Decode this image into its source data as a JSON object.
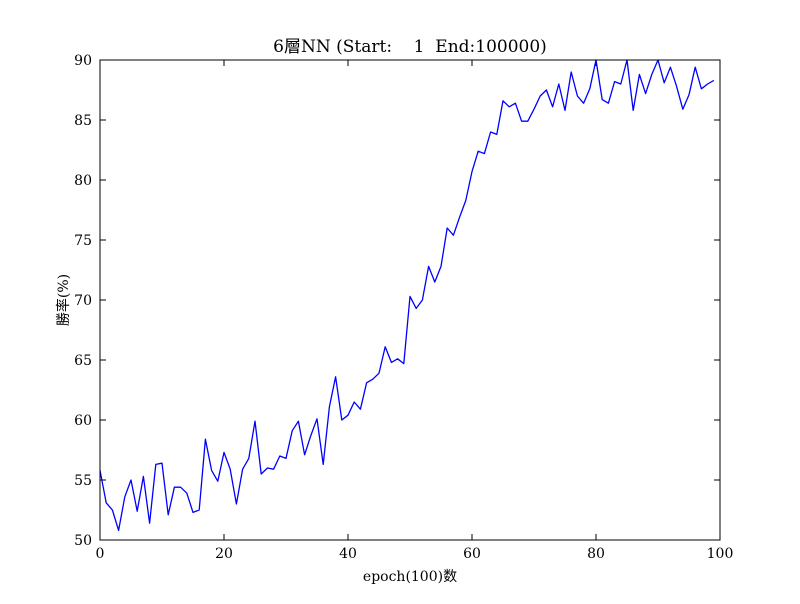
{
  "chart_data": {
    "type": "line",
    "title": "6層NN (Start:    1  End:100000)",
    "xlabel": "epoch(100)数",
    "ylabel": "勝率(%)",
    "xlim": [
      0,
      100
    ],
    "ylim": [
      50,
      90
    ],
    "xticks": [
      0,
      20,
      40,
      60,
      80,
      100
    ],
    "yticks": [
      50,
      55,
      60,
      65,
      70,
      75,
      80,
      85,
      90
    ],
    "xtick_labels": [
      "0",
      "20",
      "40",
      "60",
      "80",
      "100"
    ],
    "ytick_labels": [
      "50",
      "55",
      "60",
      "65",
      "70",
      "75",
      "80",
      "85",
      "90"
    ],
    "grid": false,
    "colors": {
      "line": "#0000ff",
      "axes": "#000000",
      "background": "#ffffff"
    },
    "x": [
      0,
      1,
      2,
      3,
      4,
      5,
      6,
      7,
      8,
      9,
      10,
      11,
      12,
      13,
      14,
      15,
      16,
      17,
      18,
      19,
      20,
      21,
      22,
      23,
      24,
      25,
      26,
      27,
      28,
      29,
      30,
      31,
      32,
      33,
      34,
      35,
      36,
      37,
      38,
      39,
      40,
      41,
      42,
      43,
      44,
      45,
      46,
      47,
      48,
      49,
      50,
      51,
      52,
      53,
      54,
      55,
      56,
      57,
      58,
      59,
      60,
      61,
      62,
      63,
      64,
      65,
      66,
      67,
      68,
      69,
      70,
      71,
      72,
      73,
      74,
      75,
      76,
      77,
      78,
      79,
      80,
      81,
      82,
      83,
      84,
      85,
      86,
      87,
      88,
      89,
      90,
      91,
      92,
      93,
      94,
      95,
      96,
      97,
      98,
      99
    ],
    "y": [
      55.8,
      53.1,
      52.5,
      50.8,
      53.6,
      55.0,
      52.4,
      55.3,
      51.4,
      56.3,
      56.4,
      52.1,
      54.4,
      54.4,
      53.9,
      52.3,
      52.5,
      58.4,
      55.8,
      54.9,
      57.3,
      55.9,
      53.0,
      55.9,
      56.8,
      59.9,
      55.5,
      56.0,
      55.9,
      57.0,
      56.8,
      59.1,
      59.9,
      57.1,
      58.7,
      60.1,
      56.3,
      61.1,
      63.6,
      60.0,
      60.4,
      61.5,
      60.9,
      63.1,
      63.4,
      63.9,
      66.1,
      64.8,
      65.1,
      64.7,
      70.3,
      69.3,
      70.0,
      72.8,
      71.5,
      72.8,
      76.0,
      75.4,
      76.9,
      78.3,
      80.7,
      82.4,
      82.2,
      84.0,
      83.8,
      86.6,
      86.1,
      86.4,
      84.9,
      84.9,
      85.9,
      87.0,
      87.5,
      86.1,
      88.0,
      85.8,
      89.0,
      87.0,
      86.4,
      87.6,
      90.0,
      86.7,
      86.4,
      88.2,
      88.0,
      90.0,
      85.8,
      88.8,
      87.2,
      88.8,
      90.0,
      88.1,
      89.4,
      87.8,
      85.9,
      87.1,
      89.4,
      87.6,
      88.0,
      88.3
    ]
  }
}
